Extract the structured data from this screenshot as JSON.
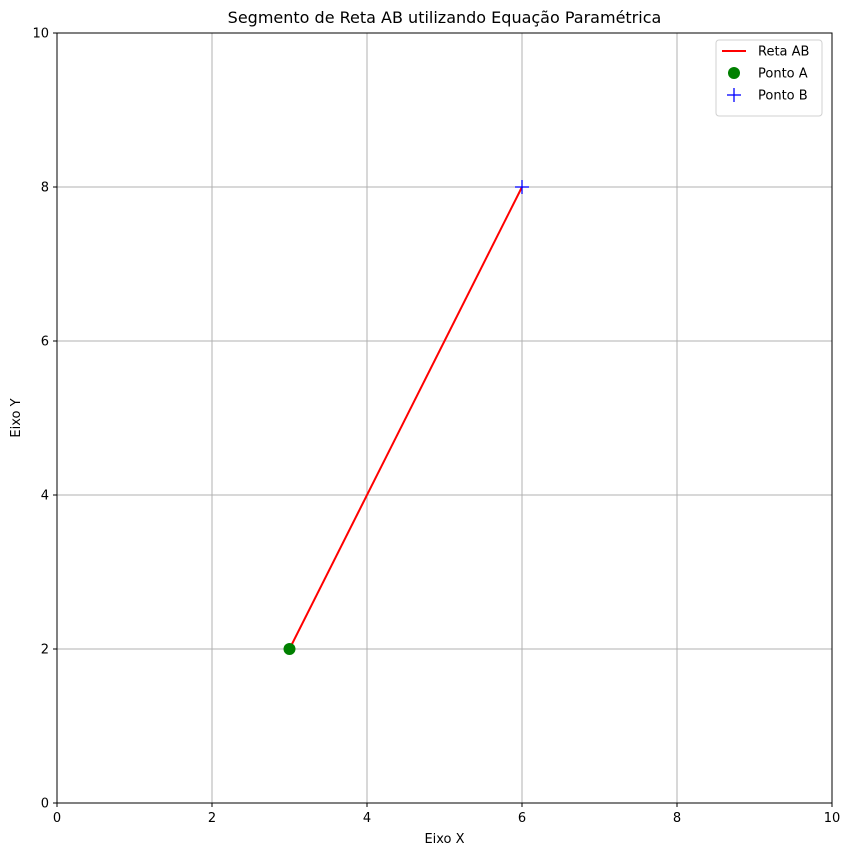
{
  "chart_data": {
    "type": "line",
    "title": "Segmento de Reta AB utilizando Equação Paramétrica",
    "xlabel": "Eixo X",
    "ylabel": "Eixo Y",
    "xlim": [
      0,
      10
    ],
    "ylim": [
      0,
      10
    ],
    "xticks": [
      "0",
      "2",
      "4",
      "6",
      "8",
      "10"
    ],
    "yticks": [
      "0",
      "2",
      "4",
      "6",
      "8",
      "10"
    ],
    "grid": true,
    "legend_position": "top-right",
    "series": [
      {
        "name": "Reta AB",
        "kind": "line",
        "color": "#ff0000",
        "x": [
          3,
          6
        ],
        "y": [
          2,
          8
        ]
      },
      {
        "name": "Ponto A",
        "kind": "point",
        "marker": "circle",
        "color": "#008000",
        "x": [
          3
        ],
        "y": [
          2
        ]
      },
      {
        "name": "Ponto B",
        "kind": "point",
        "marker": "plus",
        "color": "#0000ff",
        "x": [
          6
        ],
        "y": [
          8
        ]
      }
    ]
  }
}
